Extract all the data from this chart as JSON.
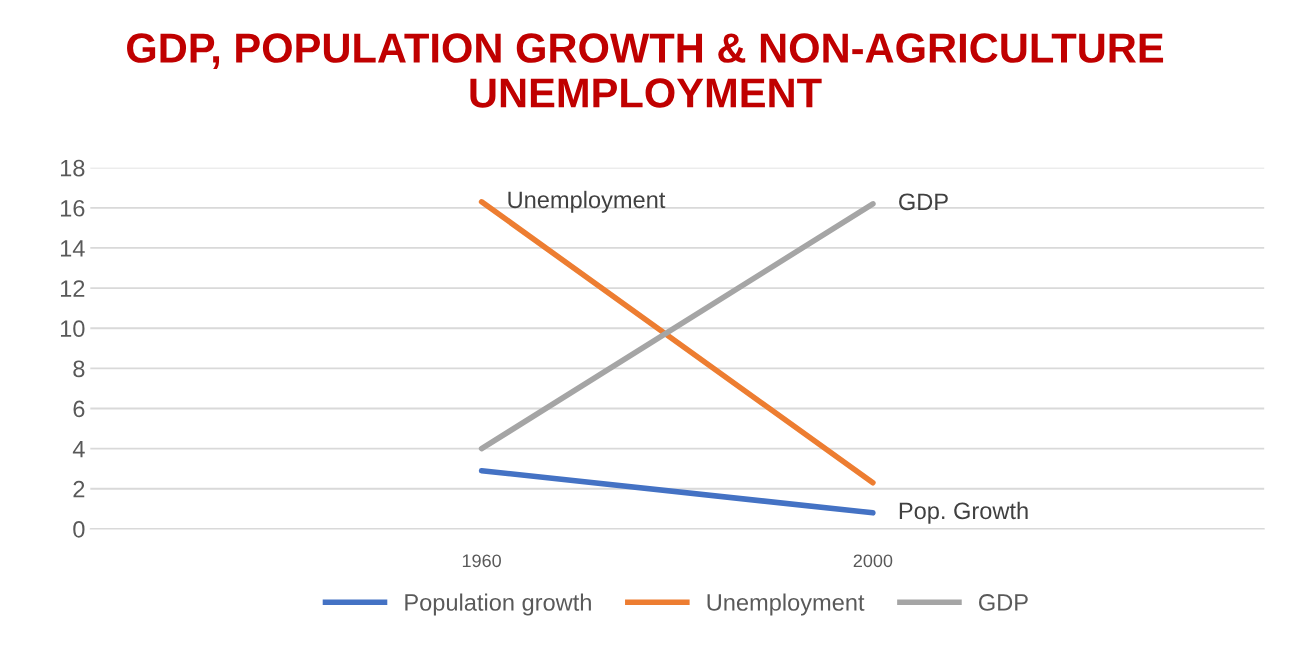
{
  "chart_data": {
    "type": "line",
    "title": "GDP, POPULATION GROWTH & NON-AGRICULTURE\nUNEMPLOYMENT",
    "categories": [
      "1960",
      "2000"
    ],
    "series": [
      {
        "name": "Population growth",
        "color": "#4472c4",
        "values": [
          2.9,
          0.8
        ]
      },
      {
        "name": "Unemployment",
        "color": "#ed7d31",
        "values": [
          16.3,
          2.3
        ]
      },
      {
        "name": "GDP",
        "color": "#a5a5a5",
        "values": [
          4.0,
          16.2
        ]
      }
    ],
    "annotations": [
      {
        "text": "Unemployment",
        "x": "1960",
        "y": 16.3
      },
      {
        "text": "GDP",
        "x": "2000",
        "y": 16.2
      },
      {
        "text": "Pop. Growth",
        "x": "2000",
        "y": 0.8
      }
    ],
    "ylim": [
      0,
      18
    ],
    "yticks": [
      0,
      2,
      4,
      6,
      8,
      10,
      12,
      14,
      16,
      18
    ],
    "grid": "y",
    "legend": "bottom",
    "marker": "none",
    "line_style": "solid"
  }
}
